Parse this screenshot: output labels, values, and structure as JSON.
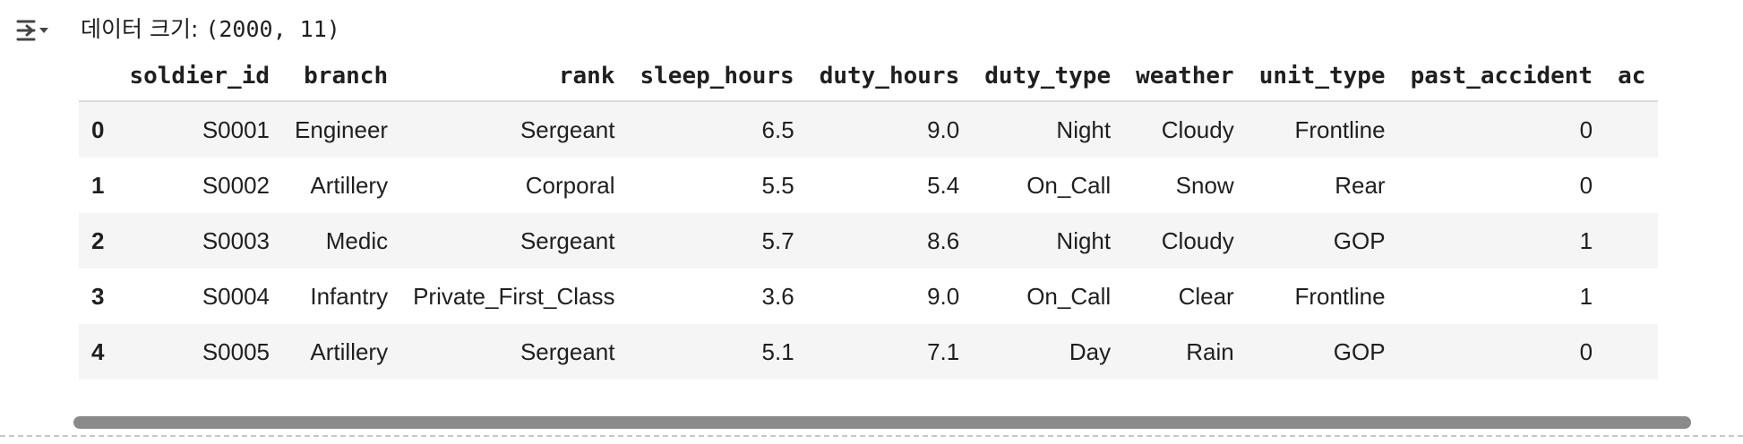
{
  "output": {
    "icon": "output-toggle-icon",
    "size_label": "데이터 크기:",
    "size_value": "(2000, 11)"
  },
  "table": {
    "columns": [
      "",
      "soldier_id",
      "branch",
      "rank",
      "sleep_hours",
      "duty_hours",
      "duty_type",
      "weather",
      "unit_type",
      "past_accident",
      "ac"
    ],
    "rows": [
      [
        "0",
        "S0001",
        "Engineer",
        "Sergeant",
        "6.5",
        "9.0",
        "Night",
        "Cloudy",
        "Frontline",
        "0",
        ""
      ],
      [
        "1",
        "S0002",
        "Artillery",
        "Corporal",
        "5.5",
        "5.4",
        "On_Call",
        "Snow",
        "Rear",
        "0",
        ""
      ],
      [
        "2",
        "S0003",
        "Medic",
        "Sergeant",
        "5.7",
        "8.6",
        "Night",
        "Cloudy",
        "GOP",
        "1",
        ""
      ],
      [
        "3",
        "S0004",
        "Infantry",
        "Private_First_Class",
        "3.6",
        "9.0",
        "On_Call",
        "Clear",
        "Frontline",
        "1",
        ""
      ],
      [
        "4",
        "S0005",
        "Artillery",
        "Sergeant",
        "5.1",
        "7.1",
        "Day",
        "Rain",
        "GOP",
        "0",
        ""
      ]
    ]
  },
  "colors": {
    "stripe": "#f5f5f5",
    "header_rule": "#dcdcdc",
    "scrollbar": "#8a8a8a",
    "text": "#1f1f1f"
  }
}
